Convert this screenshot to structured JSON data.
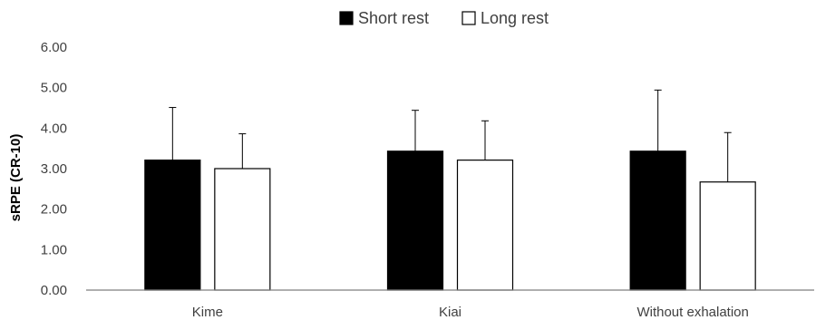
{
  "chart_data": {
    "type": "bar",
    "categories": [
      "Kime",
      "Kiai",
      "Without exhalation"
    ],
    "series": [
      {
        "name": "Short rest",
        "color": "#000000",
        "values": [
          3.21,
          3.43,
          3.43
        ],
        "error": [
          1.3,
          1.01,
          1.51
        ]
      },
      {
        "name": "Long rest",
        "color": "#ffffff",
        "values": [
          3.0,
          3.21,
          2.67
        ],
        "error": [
          0.86,
          0.97,
          1.22
        ]
      }
    ],
    "ylabel": "sRPE (CR-10)",
    "xlabel": "",
    "ylim": [
      0,
      6
    ],
    "yticks": [
      "0.00",
      "1.00",
      "2.00",
      "3.00",
      "4.00",
      "5.00",
      "6.00"
    ],
    "grid": false,
    "legend_position": "top-center"
  }
}
